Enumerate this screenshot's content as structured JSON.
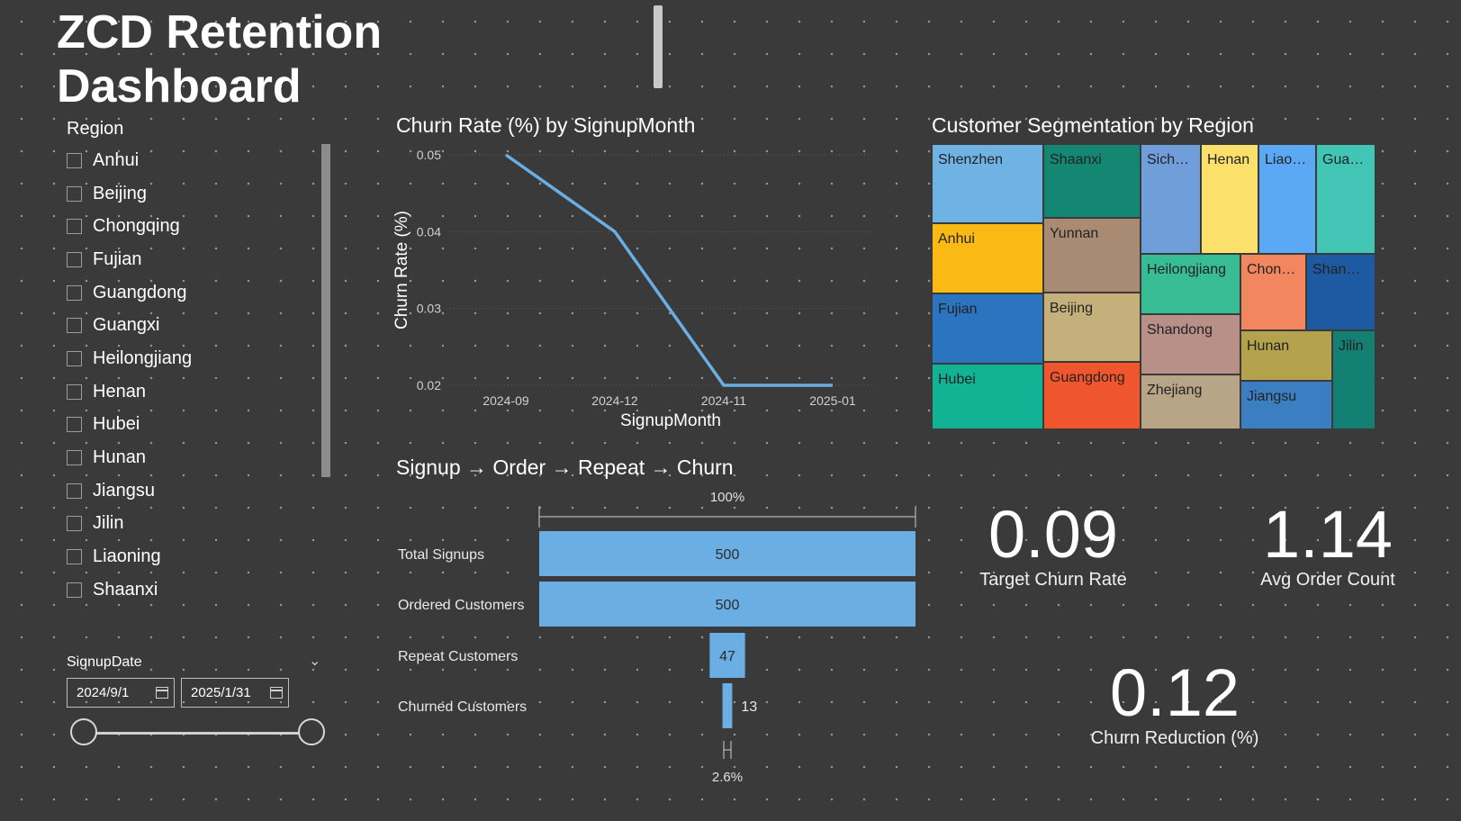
{
  "header": {
    "title": "ZCD Retention Dashboard"
  },
  "region_slicer": {
    "title": "Region",
    "items": [
      "Anhui",
      "Beijing",
      "Chongqing",
      "Fujian",
      "Guangdong",
      "Guangxi",
      "Heilongjiang",
      "Henan",
      "Hubei",
      "Hunan",
      "Jiangsu",
      "Jilin",
      "Liaoning",
      "Shaanxi"
    ]
  },
  "date_slicer": {
    "title": "SignupDate",
    "start": "2024/9/1",
    "end": "2025/1/31"
  },
  "line_chart": {
    "title": "Churn Rate (%) by SignupMonth",
    "chart_data": {
      "type": "line",
      "x": [
        "2024-09",
        "2024-12",
        "2024-11",
        "2025-01"
      ],
      "values": [
        0.05,
        0.04,
        0.02,
        0.02
      ],
      "xlabel": "SignupMonth",
      "ylabel": "Churn Rate (%)",
      "yticks": [
        "0.05",
        "0.04",
        "0.03",
        "0.02"
      ],
      "ylim": [
        0.02,
        0.05
      ],
      "color": "#6aaee3"
    }
  },
  "treemap": {
    "title": "Customer Segmentation by Region",
    "cells": [
      {
        "label": "Shenzhen",
        "color": "#6fb3e4"
      },
      {
        "label": "Anhui",
        "color": "#fbb915"
      },
      {
        "label": "Fujian",
        "color": "#2a74c0"
      },
      {
        "label": "Hubei",
        "color": "#12b294"
      },
      {
        "label": "Shaanxi",
        "color": "#138772"
      },
      {
        "label": "Yunnan",
        "color": "#a88b72"
      },
      {
        "label": "Beijing",
        "color": "#c5b07c"
      },
      {
        "label": "Guangdong",
        "color": "#f0562d"
      },
      {
        "label": "Sich…",
        "color": "#6f9edb"
      },
      {
        "label": "Henan",
        "color": "#fbe16b"
      },
      {
        "label": "Liao…",
        "color": "#5ba9f5"
      },
      {
        "label": "Gua…",
        "color": "#43c5b6"
      },
      {
        "label": "Heilongjiang",
        "color": "#37bc94"
      },
      {
        "label": "Chon…",
        "color": "#f2865e"
      },
      {
        "label": "Shan…",
        "color": "#1e5aa1"
      },
      {
        "label": "Shandong",
        "color": "#b89088"
      },
      {
        "label": "Zhejiang",
        "color": "#b8a486"
      },
      {
        "label": "Hunan",
        "color": "#b4a24d"
      },
      {
        "label": "Jiangsu",
        "color": "#3b7ec2"
      },
      {
        "label": "Jilin",
        "color": "#148073"
      }
    ]
  },
  "funnel": {
    "title": "Signup → Order → Repeat → Churn",
    "top_pct": "100%",
    "bottom_pct": "2.6%",
    "chart_data": {
      "type": "bar",
      "categories": [
        "Total Signups",
        "Ordered Customers",
        "Repeat Customers",
        "Churned Customers"
      ],
      "values": [
        500,
        500,
        47,
        13
      ],
      "color": "#6aaee3"
    }
  },
  "kpis": {
    "target_churn": {
      "value": "0.09",
      "label": "Target Churn Rate"
    },
    "avg_order": {
      "value": "1.14",
      "label": "Avg Order Count"
    },
    "churn_reduction": {
      "value": "0.12",
      "label": "Churn Reduction (%)"
    }
  }
}
